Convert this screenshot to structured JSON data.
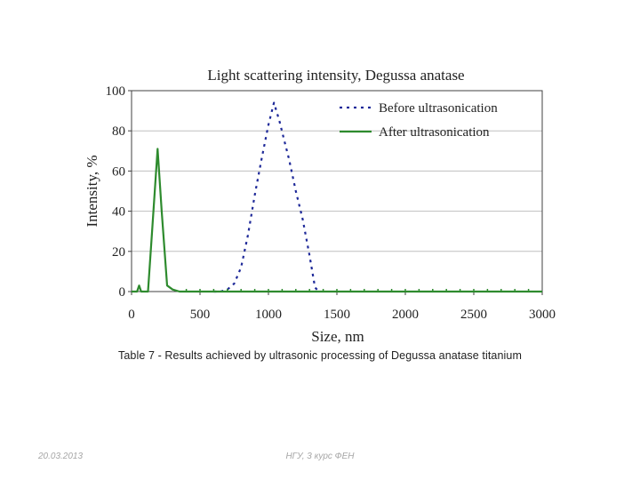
{
  "chart_data": {
    "type": "line",
    "title": "Light scattering intensity, Degussa anatase",
    "xlabel": "Size, nm",
    "ylabel": "Intensity, %",
    "xlim": [
      0,
      3000
    ],
    "ylim": [
      0,
      100
    ],
    "x_ticks": [
      "0",
      "500",
      "1000",
      "1500",
      "2000",
      "2500",
      "3000"
    ],
    "y_ticks": [
      "0",
      "20",
      "40",
      "60",
      "80",
      "100"
    ],
    "grid": "horizontal",
    "legend_position": "top-right",
    "series": [
      {
        "name": "Before ultrasonication",
        "color": "#1f2a99",
        "style": "dotted",
        "points": [
          [
            600,
            0
          ],
          [
            650,
            0
          ],
          [
            700,
            1
          ],
          [
            750,
            4
          ],
          [
            800,
            12
          ],
          [
            850,
            28
          ],
          [
            900,
            48
          ],
          [
            950,
            66
          ],
          [
            1000,
            83
          ],
          [
            1040,
            94
          ],
          [
            1080,
            85
          ],
          [
            1120,
            74
          ],
          [
            1150,
            66
          ],
          [
            1200,
            50
          ],
          [
            1250,
            36
          ],
          [
            1300,
            18
          ],
          [
            1340,
            2
          ],
          [
            1370,
            0
          ]
        ]
      },
      {
        "name": "After ultrasonication",
        "color": "#2e8b2e",
        "style": "solid",
        "points": [
          [
            0,
            0
          ],
          [
            40,
            0
          ],
          [
            55,
            3
          ],
          [
            70,
            0
          ],
          [
            120,
            0
          ],
          [
            150,
            30
          ],
          [
            190,
            71
          ],
          [
            220,
            40
          ],
          [
            260,
            3
          ],
          [
            300,
            1
          ],
          [
            350,
            0
          ],
          [
            3000,
            0
          ]
        ]
      }
    ]
  },
  "caption": "Table 7 - Results achieved by ultrasonic processing of Degussa anatase titanium",
  "footer": {
    "date": "20.03.2013",
    "center": "НГУ, 3 курс ФЕН"
  }
}
